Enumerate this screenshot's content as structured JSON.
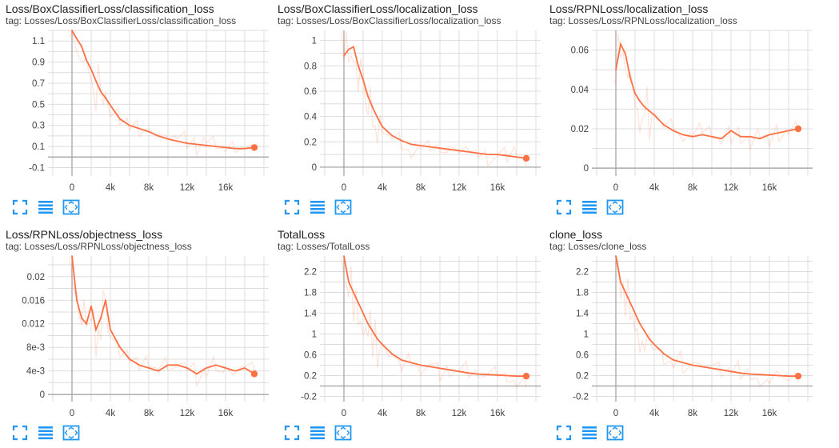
{
  "ui": {
    "accent": "#ff7043",
    "icon_color": "#2196f3",
    "grid_color": "#dddddd",
    "icons": [
      "fullscreen-icon",
      "toggle-log-scale-icon",
      "fit-domain-icon"
    ]
  },
  "cards": [
    {
      "title": "Loss/BoxClassifierLoss/classification_loss",
      "tag": "tag: Losses/Loss/BoxClassifierLoss/classification_loss",
      "yticks": [
        "-0.1",
        "0.1",
        "0.3",
        "0.5",
        "0.7",
        "0.9",
        "1.1"
      ],
      "xticks": [
        "0",
        "4k",
        "8k",
        "12k",
        "16k"
      ]
    },
    {
      "title": "Loss/BoxClassifierLoss/localization_loss",
      "tag": "tag: Losses/Loss/BoxClassifierLoss/localization_loss",
      "yticks": [
        "0",
        "0.2",
        "0.4",
        "0.6",
        "0.8",
        "1"
      ],
      "xticks": [
        "0",
        "4k",
        "8k",
        "12k",
        "16k"
      ]
    },
    {
      "title": "Loss/RPNLoss/localization_loss",
      "tag": "tag: Losses/Loss/RPNLoss/localization_loss",
      "yticks": [
        "0",
        "0.02",
        "0.04",
        "0.06"
      ],
      "xticks": [
        "0",
        "4k",
        "8k",
        "12k",
        "16k"
      ]
    },
    {
      "title": "Loss/RPNLoss/objectness_loss",
      "tag": "tag: Losses/Loss/RPNLoss/objectness_loss",
      "yticks": [
        "0",
        "4e-3",
        "8e-3",
        "0.012",
        "0.016",
        "0.02"
      ],
      "xticks": [
        "0",
        "4k",
        "8k",
        "12k",
        "16k"
      ]
    },
    {
      "title": "TotalLoss",
      "tag": "tag: Losses/TotalLoss",
      "yticks": [
        "-0.2",
        "0.2",
        "0.6",
        "1",
        "1.4",
        "1.8",
        "2.2"
      ],
      "xticks": [
        "0",
        "4k",
        "8k",
        "12k",
        "16k"
      ]
    },
    {
      "title": "clone_loss",
      "tag": "tag: Losses/clone_loss",
      "yticks": [
        "-0.2",
        "0.2",
        "0.6",
        "1",
        "1.4",
        "1.8",
        "2.2"
      ],
      "xticks": [
        "0",
        "4k",
        "8k",
        "12k",
        "16k"
      ]
    }
  ],
  "chart_data": [
    {
      "type": "line",
      "xlim": [
        -2500,
        20500
      ],
      "ylim": [
        -0.18,
        1.2
      ],
      "grid": true,
      "x": [
        0,
        500,
        1000,
        1500,
        2000,
        2500,
        3000,
        3500,
        4000,
        5000,
        6000,
        7000,
        8000,
        9000,
        10000,
        11000,
        12000,
        13000,
        14000,
        15000,
        16000,
        17000,
        18000,
        19000
      ],
      "series": [
        {
          "values": [
            1.25,
            1.12,
            1.05,
            0.92,
            0.83,
            0.72,
            0.62,
            0.56,
            0.49,
            0.36,
            0.3,
            0.27,
            0.24,
            0.2,
            0.17,
            0.15,
            0.13,
            0.12,
            0.11,
            0.1,
            0.09,
            0.08,
            0.08,
            0.09
          ]
        }
      ]
    },
    {
      "type": "line",
      "xlim": [
        -2500,
        20500
      ],
      "ylim": [
        -0.07,
        1.08
      ],
      "grid": true,
      "x": [
        0,
        500,
        1000,
        1500,
        2000,
        2500,
        3000,
        3500,
        4000,
        5000,
        6000,
        7000,
        8000,
        9000,
        10000,
        11000,
        12000,
        13000,
        14000,
        15000,
        16000,
        17000,
        18000,
        19000
      ],
      "series": [
        {
          "values": [
            0.88,
            0.93,
            0.95,
            0.8,
            0.69,
            0.56,
            0.47,
            0.39,
            0.32,
            0.25,
            0.21,
            0.18,
            0.17,
            0.16,
            0.15,
            0.14,
            0.13,
            0.12,
            0.11,
            0.1,
            0.1,
            0.09,
            0.08,
            0.07
          ]
        }
      ]
    },
    {
      "type": "line",
      "xlim": [
        -2500,
        20500
      ],
      "ylim": [
        -0.004,
        0.07
      ],
      "grid": true,
      "x": [
        0,
        500,
        1000,
        1500,
        2000,
        2500,
        3000,
        3500,
        4000,
        5000,
        6000,
        7000,
        8000,
        9000,
        10000,
        11000,
        12000,
        13000,
        14000,
        15000,
        16000,
        17000,
        18000,
        19000
      ],
      "series": [
        {
          "values": [
            0.05,
            0.063,
            0.058,
            0.046,
            0.038,
            0.034,
            0.031,
            0.029,
            0.027,
            0.022,
            0.019,
            0.017,
            0.016,
            0.017,
            0.016,
            0.015,
            0.019,
            0.016,
            0.016,
            0.015,
            0.017,
            0.018,
            0.019,
            0.02
          ]
        }
      ]
    },
    {
      "type": "line",
      "xlim": [
        -2500,
        20500
      ],
      "ylim": [
        -0.0012,
        0.0235
      ],
      "grid": true,
      "x": [
        0,
        500,
        1000,
        1500,
        2000,
        2500,
        3000,
        3500,
        4000,
        5000,
        6000,
        7000,
        8000,
        9000,
        10000,
        11000,
        12000,
        13000,
        14000,
        15000,
        16000,
        17000,
        18000,
        19000
      ],
      "series": [
        {
          "values": [
            0.025,
            0.016,
            0.013,
            0.012,
            0.015,
            0.011,
            0.013,
            0.016,
            0.011,
            0.008,
            0.006,
            0.005,
            0.0045,
            0.004,
            0.005,
            0.005,
            0.0045,
            0.0035,
            0.0045,
            0.005,
            0.0045,
            0.004,
            0.0045,
            0.0035
          ]
        }
      ]
    },
    {
      "type": "line",
      "xlim": [
        -2500,
        20500
      ],
      "ylim": [
        -0.3,
        2.5
      ],
      "grid": true,
      "x": [
        0,
        500,
        1000,
        1500,
        2000,
        2500,
        3000,
        3500,
        4000,
        5000,
        6000,
        7000,
        8000,
        9000,
        10000,
        11000,
        12000,
        13000,
        14000,
        15000,
        16000,
        17000,
        18000,
        19000
      ],
      "series": [
        {
          "values": [
            2.5,
            2.0,
            1.8,
            1.6,
            1.4,
            1.2,
            1.05,
            0.9,
            0.8,
            0.62,
            0.5,
            0.45,
            0.4,
            0.37,
            0.34,
            0.31,
            0.28,
            0.25,
            0.23,
            0.22,
            0.21,
            0.2,
            0.19,
            0.19
          ]
        }
      ]
    },
    {
      "type": "line",
      "xlim": [
        -2500,
        20500
      ],
      "ylim": [
        -0.3,
        2.5
      ],
      "grid": true,
      "x": [
        0,
        500,
        1000,
        1500,
        2000,
        2500,
        3000,
        3500,
        4000,
        5000,
        6000,
        7000,
        8000,
        9000,
        10000,
        11000,
        12000,
        13000,
        14000,
        15000,
        16000,
        17000,
        18000,
        19000
      ],
      "series": [
        {
          "values": [
            2.5,
            2.0,
            1.8,
            1.6,
            1.4,
            1.2,
            1.05,
            0.9,
            0.8,
            0.62,
            0.5,
            0.45,
            0.4,
            0.37,
            0.34,
            0.31,
            0.28,
            0.25,
            0.23,
            0.22,
            0.21,
            0.2,
            0.19,
            0.19
          ]
        }
      ]
    }
  ]
}
